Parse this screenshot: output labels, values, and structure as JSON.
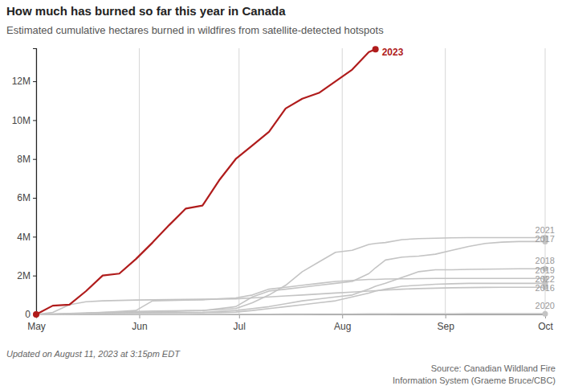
{
  "chart_data": {
    "type": "line",
    "title": "How much has burned so far this year in Canada",
    "subtitle": "Estimated cumulative hectares burned in wildfires from satellite-detected hotspots",
    "note": "Updated on August 11, 2023 at 3:15pm EDT",
    "source": [
      "Source: Canadian Wildland Fire",
      "Information System (Graeme Bruce/CBC)"
    ],
    "x": [
      0,
      5,
      10,
      15,
      20,
      25,
      30,
      35,
      40,
      45,
      50,
      55,
      60,
      65,
      70,
      75,
      80,
      85,
      90,
      95,
      100,
      102,
      105,
      110,
      115,
      120,
      125,
      130,
      135,
      140,
      145,
      150,
      153
    ],
    "xlim": [
      0,
      153
    ],
    "xticks": [
      {
        "value": 0,
        "label": "May"
      },
      {
        "value": 31,
        "label": "Jun"
      },
      {
        "value": 61,
        "label": "Jul"
      },
      {
        "value": 92,
        "label": "Aug"
      },
      {
        "value": 123,
        "label": "Sep"
      },
      {
        "value": 153,
        "label": "Oct"
      }
    ],
    "ylim": [
      0,
      13700000
    ],
    "yticks": [
      0,
      {
        "value": 2000000,
        "label": "2M"
      },
      {
        "value": 4000000,
        "label": "4M"
      },
      {
        "value": 6000000,
        "label": "6M"
      },
      {
        "value": 8000000,
        "label": "8M"
      },
      {
        "value": 10000000,
        "label": "10M"
      },
      {
        "value": 12000000,
        "label": "12M"
      }
    ],
    "grid": "x",
    "marker": "ends",
    "series": [
      {
        "name": "2023",
        "color": "#b01c1c",
        "values": [
          0,
          450000,
          500000,
          1200000,
          2000000,
          2100000,
          2850000,
          3700000,
          4600000,
          5450000,
          5600000,
          6900000,
          8000000,
          8700000,
          9400000,
          10600000,
          11100000,
          11400000,
          12000000,
          12600000,
          13500000,
          13650000,
          null,
          null,
          null,
          null,
          null,
          null,
          null,
          null,
          null,
          null,
          null
        ]
      },
      {
        "name": "2021",
        "color": "#c4c4c4",
        "values": [
          0,
          20000,
          50000,
          80000,
          100000,
          120000,
          150000,
          170000,
          180000,
          190000,
          200000,
          250000,
          300000,
          600000,
          1000000,
          1500000,
          2200000,
          2700000,
          3200000,
          3300000,
          3600000,
          3650000,
          3700000,
          3850000,
          3900000,
          3920000,
          3940000,
          3950000,
          3950000,
          3950000,
          3950000,
          3950000,
          3950000
        ]
      },
      {
        "name": "2017",
        "color": "#c4c4c4",
        "values": [
          0,
          10000,
          20000,
          30000,
          50000,
          80000,
          100000,
          120000,
          150000,
          180000,
          200000,
          300000,
          400000,
          900000,
          1200000,
          1300000,
          1400000,
          1500000,
          1600000,
          1700000,
          2100000,
          2400000,
          2800000,
          2950000,
          3000000,
          3100000,
          3300000,
          3500000,
          3650000,
          3720000,
          3750000,
          3750000,
          3750000
        ]
      },
      {
        "name": "2018",
        "color": "#c4c4c4",
        "values": [
          0,
          10000,
          20000,
          30000,
          40000,
          60000,
          70000,
          80000,
          90000,
          95000,
          100000,
          150000,
          200000,
          300000,
          400000,
          550000,
          700000,
          800000,
          900000,
          1000000,
          1300000,
          1450000,
          1600000,
          1900000,
          2200000,
          2300000,
          2300000,
          2320000,
          2330000,
          2340000,
          2350000,
          2350000,
          2350000
        ]
      },
      {
        "name": "2019",
        "color": "#c4c4c4",
        "values": [
          0,
          20000,
          40000,
          60000,
          100000,
          150000,
          200000,
          700000,
          720000,
          740000,
          750000,
          800000,
          850000,
          1000000,
          1300000,
          1400000,
          1500000,
          1600000,
          1700000,
          1750000,
          1800000,
          1800000,
          1820000,
          1830000,
          1840000,
          1850000,
          1850000,
          1850000,
          1850000,
          1850000,
          1850000,
          1850000,
          1850000
        ]
      },
      {
        "name": "2022",
        "color": "#c4c4c4",
        "values": [
          0,
          10000,
          20000,
          30000,
          40000,
          50000,
          60000,
          70000,
          80000,
          90000,
          100000,
          100000,
          120000,
          200000,
          300000,
          400000,
          500000,
          600000,
          700000,
          900000,
          1100000,
          1200000,
          1300000,
          1450000,
          1500000,
          1550000,
          1580000,
          1600000,
          1600000,
          1600000,
          1600000,
          1600000,
          1600000
        ]
      },
      {
        "name": "2016",
        "color": "#c4c4c4",
        "values": [
          0,
          100000,
          500000,
          650000,
          700000,
          720000,
          740000,
          750000,
          760000,
          770000,
          780000,
          790000,
          800000,
          850000,
          900000,
          950000,
          1000000,
          1050000,
          1100000,
          1150000,
          1200000,
          1220000,
          1250000,
          1300000,
          1330000,
          1350000,
          1370000,
          1380000,
          1390000,
          1400000,
          1400000,
          1400000,
          1400000
        ]
      },
      {
        "name": "2020",
        "color": "#c4c4c4",
        "values": [
          0,
          0,
          0,
          0,
          0,
          0,
          0,
          0,
          0,
          0,
          5000,
          5000,
          10000,
          10000,
          10000,
          15000,
          15000,
          20000,
          20000,
          20000,
          25000,
          25000,
          25000,
          30000,
          30000,
          30000,
          30000,
          35000,
          35000,
          35000,
          35000,
          35000,
          35000
        ]
      }
    ]
  }
}
